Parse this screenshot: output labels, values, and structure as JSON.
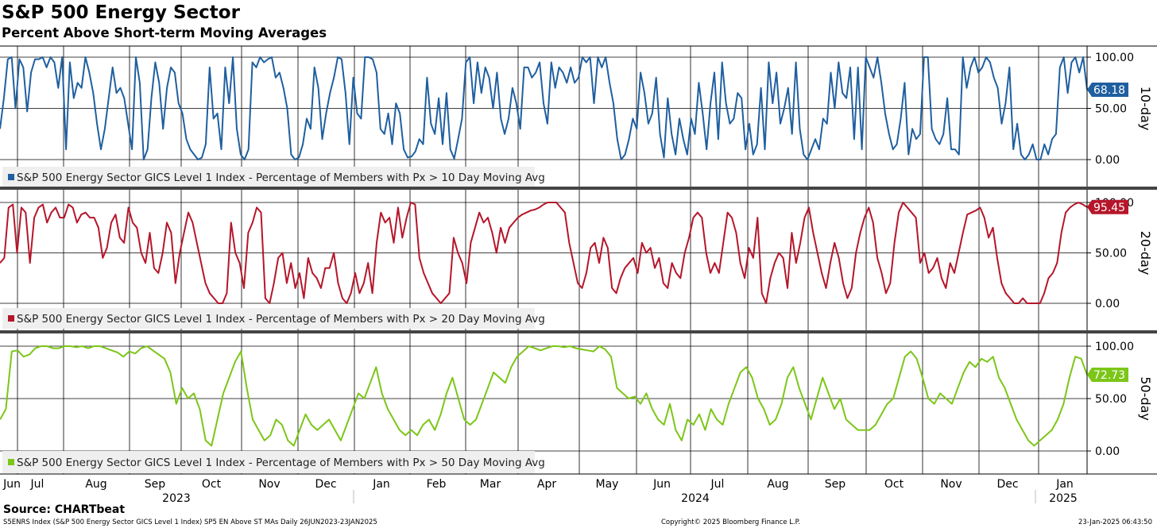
{
  "header": {
    "title": "S&P 500 Energy Sector",
    "subtitle": "Percent Above Short-term Moving Averages"
  },
  "footer": {
    "source": "Source: CHARTbeat",
    "ticker_line": "S5ENRS Index (S&P 500 Energy Sector GICS Level 1 Index) SP5 EN Above ST MAs  Daily 26JUN2023-23JAN2025",
    "copyright": "Copyright© 2025 Bloomberg Finance L.P.",
    "timestamp": "23-Jan-2025 06:43:50"
  },
  "chart_data": {
    "type": "line",
    "x_start": "2023-06-26",
    "x_end": "2025-01-23",
    "month_labels": [
      "Jun",
      "Jul",
      "Aug",
      "Sep",
      "Oct",
      "Nov",
      "Dec",
      "Jan",
      "Feb",
      "Mar",
      "Apr",
      "May",
      "Jun",
      "Jul",
      "Aug",
      "Sep",
      "Oct",
      "Nov",
      "Dec",
      "Jan"
    ],
    "year_labels": [
      "2023",
      "2024",
      "2025"
    ],
    "ylim": [
      0,
      100
    ],
    "y_ticks": [
      "0.00",
      "50.00",
      "100.00"
    ],
    "grid": true,
    "panels": [
      {
        "panel_label": "10-day",
        "legend": "S&P 500 Energy Sector GICS Level 1 Index - Percentage of Members with Px > 10 Day Moving Avg",
        "color": "#1f5fa0",
        "last_value": "68.18",
        "values": [
          30,
          60,
          98,
          100,
          50,
          98,
          90,
          47,
          85,
          98,
          98,
          100,
          90,
          100,
          95,
          70,
          100,
          10,
          95,
          60,
          75,
          70,
          100,
          85,
          65,
          35,
          10,
          30,
          60,
          90,
          65,
          70,
          60,
          35,
          10,
          100,
          75,
          0,
          10,
          60,
          95,
          75,
          30,
          70,
          90,
          85,
          55,
          45,
          20,
          10,
          5,
          0,
          2,
          15,
          90,
          40,
          45,
          10,
          90,
          55,
          100,
          30,
          5,
          0,
          10,
          95,
          90,
          100,
          95,
          98,
          100,
          80,
          85,
          70,
          50,
          5,
          0,
          2,
          15,
          40,
          30,
          90,
          70,
          20,
          45,
          65,
          80,
          100,
          98,
          65,
          15,
          80,
          45,
          40,
          100,
          100,
          98,
          85,
          30,
          25,
          45,
          15,
          55,
          45,
          10,
          2,
          3,
          8,
          20,
          15,
          80,
          35,
          25,
          60,
          15,
          65,
          10,
          1,
          20,
          40,
          95,
          100,
          55,
          95,
          65,
          90,
          80,
          50,
          85,
          40,
          25,
          40,
          70,
          55,
          30,
          90,
          90,
          80,
          85,
          95,
          55,
          35,
          95,
          70,
          90,
          85,
          75,
          90,
          75,
          80,
          100,
          95,
          100,
          55,
          100,
          90,
          100,
          75,
          55,
          20,
          0,
          5,
          20,
          40,
          30,
          85,
          65,
          35,
          45,
          80,
          25,
          2,
          60,
          25,
          5,
          40,
          20,
          5,
          40,
          25,
          75,
          45,
          10,
          55,
          85,
          20,
          95,
          55,
          35,
          40,
          65,
          60,
          10,
          35,
          5,
          15,
          70,
          10,
          95,
          55,
          85,
          35,
          50,
          70,
          25,
          95,
          30,
          5,
          0,
          10,
          20,
          10,
          40,
          35,
          85,
          50,
          95,
          65,
          60,
          90,
          20,
          90,
          10,
          100,
          90,
          80,
          100,
          75,
          45,
          25,
          10,
          15,
          40,
          75,
          5,
          30,
          20,
          25,
          100,
          100,
          30,
          20,
          15,
          25,
          60,
          10,
          10,
          5,
          100,
          70,
          90,
          100,
          85,
          90,
          100,
          95,
          80,
          70,
          35,
          55,
          90,
          10,
          35,
          5,
          0,
          5,
          15,
          0,
          0,
          15,
          5,
          20,
          25,
          90,
          100,
          65,
          95,
          100,
          85,
          100,
          68.18
        ]
      },
      {
        "panel_label": "20-day",
        "legend": "S&P 500 Energy Sector GICS Level 1 Index - Percentage of Members with Px > 20 Day Moving Avg",
        "color": "#b5162a",
        "last_value": "95.45",
        "values": [
          40,
          45,
          95,
          98,
          50,
          95,
          90,
          40,
          85,
          95,
          98,
          80,
          90,
          95,
          85,
          85,
          98,
          95,
          80,
          88,
          90,
          85,
          85,
          75,
          45,
          55,
          80,
          88,
          65,
          60,
          95,
          80,
          75,
          50,
          40,
          70,
          35,
          30,
          50,
          80,
          70,
          20,
          50,
          70,
          90,
          80,
          60,
          40,
          20,
          10,
          5,
          0,
          0,
          10,
          80,
          50,
          40,
          15,
          70,
          80,
          95,
          90,
          5,
          0,
          20,
          45,
          50,
          20,
          40,
          15,
          30,
          5,
          45,
          30,
          25,
          15,
          35,
          35,
          50,
          20,
          5,
          0,
          10,
          30,
          10,
          20,
          40,
          10,
          60,
          90,
          80,
          85,
          60,
          95,
          65,
          85,
          100,
          98,
          45,
          30,
          20,
          10,
          5,
          0,
          5,
          10,
          65,
          50,
          40,
          20,
          60,
          75,
          90,
          80,
          85,
          70,
          50,
          75,
          60,
          75,
          80,
          85,
          88,
          90,
          92,
          93,
          95,
          98,
          100,
          100,
          100,
          95,
          90,
          60,
          40,
          20,
          15,
          30,
          55,
          60,
          40,
          65,
          55,
          15,
          10,
          25,
          35,
          40,
          45,
          30,
          60,
          50,
          55,
          35,
          45,
          20,
          15,
          40,
          30,
          25,
          50,
          65,
          85,
          90,
          85,
          50,
          30,
          40,
          30,
          60,
          90,
          85,
          70,
          40,
          25,
          55,
          45,
          85,
          10,
          0,
          25,
          40,
          50,
          45,
          15,
          70,
          40,
          60,
          85,
          95,
          70,
          50,
          30,
          15,
          40,
          60,
          45,
          20,
          5,
          15,
          50,
          70,
          85,
          95,
          80,
          45,
          30,
          10,
          20,
          60,
          90,
          100,
          95,
          90,
          85,
          40,
          50,
          30,
          35,
          45,
          25,
          15,
          40,
          30,
          50,
          70,
          88,
          90,
          92,
          95,
          85,
          65,
          75,
          45,
          20,
          10,
          5,
          0,
          0,
          5,
          0,
          0,
          0,
          0,
          10,
          25,
          30,
          40,
          70,
          90,
          95,
          98,
          100,
          98,
          95.45
        ]
      },
      {
        "panel_label": "50-day",
        "legend": "S&P 500 Energy Sector GICS Level 1 Index - Percentage of Members with Px > 50 Day Moving Avg",
        "color": "#7cc618",
        "last_value": "72.73",
        "values": [
          30,
          40,
          95,
          96,
          90,
          92,
          98,
          100,
          100,
          98,
          98,
          100,
          100,
          99,
          100,
          98,
          100,
          100,
          98,
          96,
          94,
          90,
          95,
          93,
          98,
          100,
          96,
          92,
          88,
          75,
          45,
          60,
          50,
          55,
          40,
          10,
          5,
          30,
          55,
          70,
          85,
          95,
          60,
          30,
          20,
          10,
          15,
          30,
          25,
          10,
          5,
          20,
          35,
          25,
          20,
          25,
          30,
          20,
          10,
          25,
          40,
          55,
          50,
          65,
          80,
          55,
          40,
          30,
          20,
          15,
          20,
          15,
          25,
          30,
          20,
          35,
          55,
          70,
          50,
          30,
          25,
          30,
          45,
          60,
          75,
          70,
          65,
          80,
          90,
          95,
          100,
          98,
          96,
          98,
          100,
          100,
          99,
          100,
          98,
          97,
          96,
          95,
          100,
          97,
          90,
          60,
          55,
          50,
          52,
          45,
          55,
          40,
          30,
          25,
          45,
          20,
          10,
          30,
          25,
          35,
          20,
          40,
          30,
          25,
          45,
          60,
          75,
          80,
          70,
          50,
          40,
          25,
          30,
          45,
          70,
          80,
          60,
          45,
          30,
          50,
          70,
          55,
          40,
          50,
          30,
          25,
          20,
          20,
          20,
          25,
          35,
          45,
          50,
          70,
          90,
          95,
          88,
          70,
          50,
          45,
          55,
          50,
          45,
          60,
          75,
          85,
          80,
          88,
          85,
          90,
          70,
          60,
          45,
          30,
          20,
          10,
          5,
          10,
          15,
          20,
          30,
          45,
          70,
          90,
          88,
          72.73
        ]
      }
    ]
  }
}
